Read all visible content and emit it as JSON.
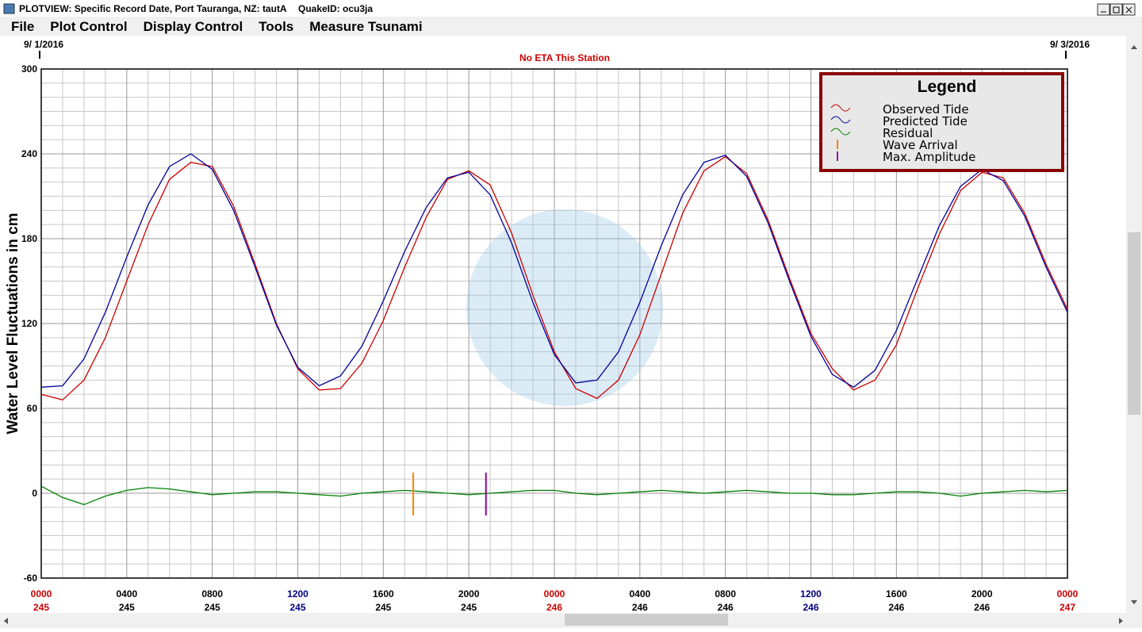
{
  "window": {
    "title": "PLOTVIEW: Specific Record Date, Port Tauranga, NZ: tautA",
    "quake": "QuakeID: ocu3ja"
  },
  "menu": [
    "File",
    "Plot Control",
    "Display Control",
    "Tools",
    "Measure Tsunami"
  ],
  "chart_data": {
    "type": "line",
    "start_date": "9/ 1/2016",
    "end_date": "9/ 3/2016",
    "subtitle": "No ETA This Station",
    "y_label": "Water Level Fluctuations in cm",
    "legend_title": "Legend",
    "x": [
      0,
      1,
      2,
      3,
      4,
      5,
      6,
      7,
      8,
      9,
      10,
      11,
      12,
      13,
      14,
      15,
      16,
      17,
      18,
      19,
      20,
      21,
      22,
      23,
      24,
      25,
      26,
      27,
      28,
      29,
      30,
      31,
      32,
      33,
      34,
      35,
      36,
      37,
      38,
      39,
      40,
      41,
      42,
      43,
      44,
      45,
      46,
      47,
      48
    ],
    "xlim": [
      0,
      48
    ],
    "xticks": [
      {
        "value": 0,
        "label": "0000"
      },
      {
        "value": 4,
        "label": "0400"
      },
      {
        "value": 8,
        "label": "0800"
      },
      {
        "value": 12,
        "label": "1200"
      },
      {
        "value": 16,
        "label": "1600"
      },
      {
        "value": 20,
        "label": "2000"
      },
      {
        "value": 24,
        "label": "0000"
      },
      {
        "value": 28,
        "label": "0400"
      },
      {
        "value": 32,
        "label": "0800"
      },
      {
        "value": 36,
        "label": "1200"
      },
      {
        "value": 40,
        "label": "1600"
      },
      {
        "value": 44,
        "label": "2000"
      },
      {
        "value": 48,
        "label": "0000"
      }
    ],
    "xtick_days": [
      "245",
      "245",
      "245",
      "245",
      "245",
      "245",
      "246",
      "246",
      "246",
      "246",
      "246",
      "246",
      "247"
    ],
    "xtick_colors": [
      "#cc0000",
      "#000000",
      "#000000",
      "#000080",
      "#000000",
      "#000000",
      "#cc0000",
      "#000000",
      "#000000",
      "#000080",
      "#000000",
      "#000000",
      "#cc0000"
    ],
    "ylim": [
      -60,
      300
    ],
    "yticks": [
      -60,
      0,
      60,
      120,
      180,
      240,
      300
    ],
    "grid": true,
    "series": [
      {
        "name": "Observed Tide",
        "color": "#cc0000",
        "values": [
          70,
          66,
          80,
          110,
          150,
          190,
          222,
          234,
          231,
          203,
          162,
          120,
          88,
          73,
          74,
          92,
          122,
          160,
          195,
          222,
          228,
          218,
          184,
          140,
          100,
          74,
          67,
          80,
          112,
          155,
          198,
          228,
          238,
          226,
          193,
          152,
          113,
          88,
          73,
          80,
          105,
          145,
          183,
          214,
          227,
          223,
          198,
          162,
          130
        ]
      },
      {
        "name": "Predicted Tide",
        "color": "#000099",
        "values": [
          75,
          76,
          95,
          128,
          167,
          204,
          231,
          240,
          229,
          200,
          160,
          119,
          89,
          76,
          83,
          104,
          136,
          171,
          202,
          223,
          227,
          211,
          177,
          135,
          98,
          78,
          80,
          100,
          135,
          175,
          211,
          234,
          239,
          224,
          191,
          150,
          111,
          84,
          75,
          87,
          115,
          152,
          189,
          217,
          229,
          221,
          196,
          160,
          128
        ]
      },
      {
        "name": "Residual",
        "color": "#008000",
        "values": [
          5,
          -3,
          -8,
          -2,
          2,
          4,
          3,
          1,
          -1,
          0,
          1,
          1,
          0,
          -1,
          -2,
          0,
          1,
          2,
          1,
          0,
          -1,
          0,
          1,
          2,
          2,
          0,
          -1,
          0,
          1,
          2,
          1,
          0,
          1,
          2,
          1,
          0,
          0,
          -1,
          -1,
          0,
          1,
          1,
          0,
          -2,
          0,
          1,
          2,
          1,
          2
        ]
      }
    ],
    "markers": [
      {
        "name": "Wave Arrival",
        "color": "#ff8000",
        "x": 17.4
      },
      {
        "name": "Max. Amplitude",
        "color": "#990099",
        "x": 20.8
      }
    ]
  }
}
